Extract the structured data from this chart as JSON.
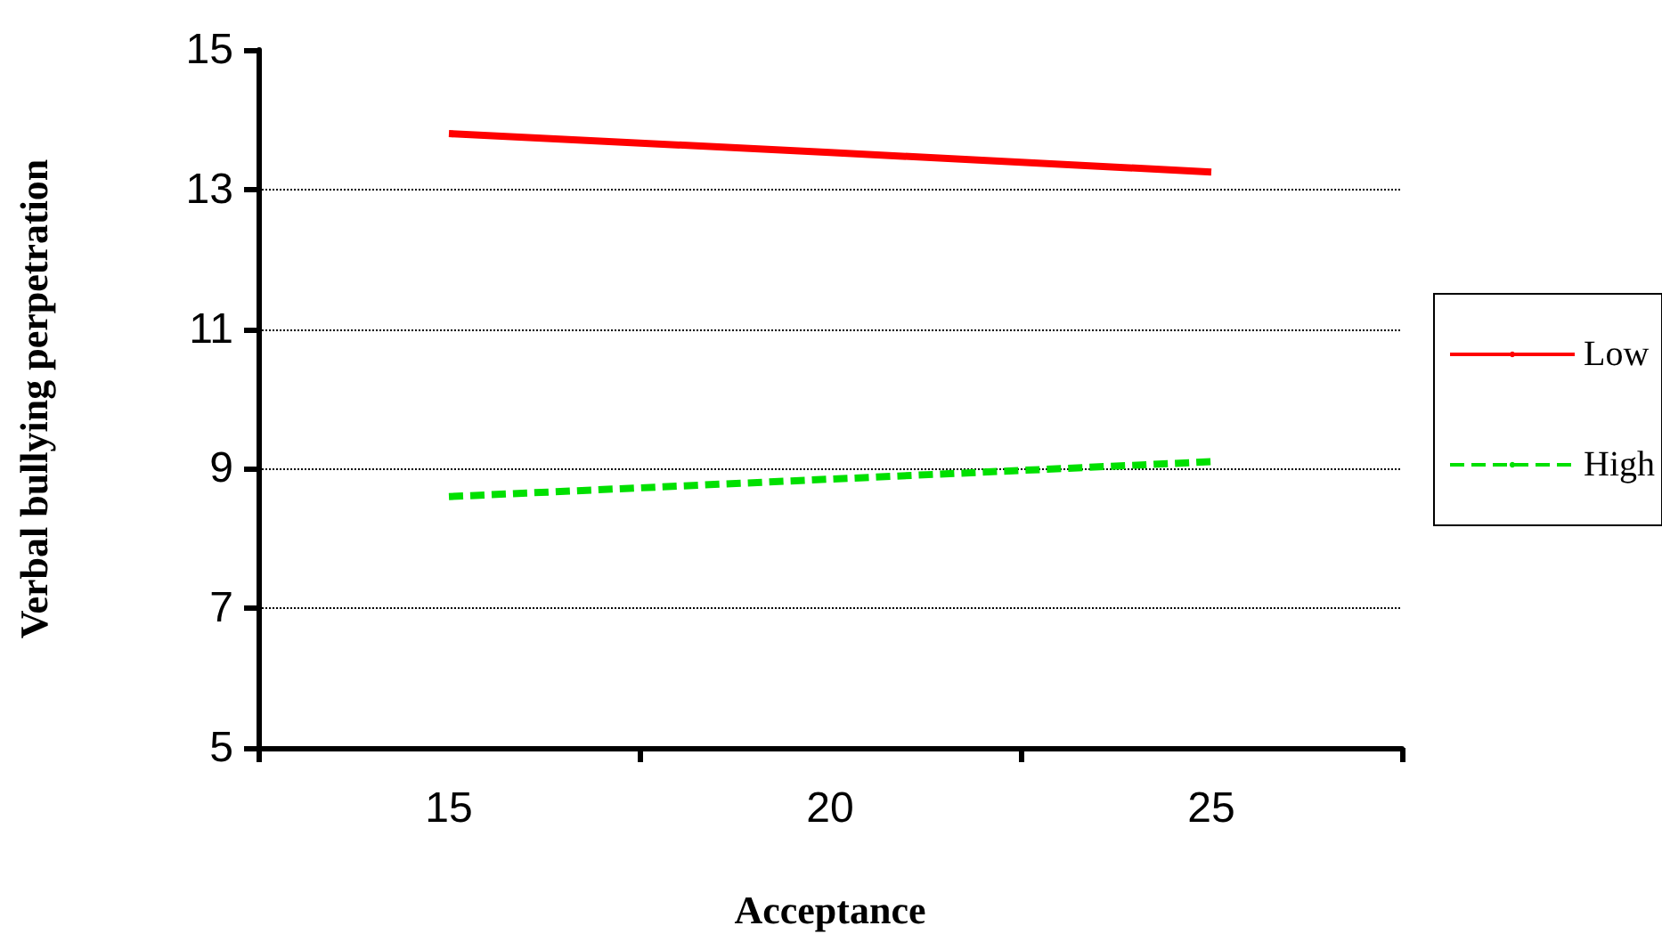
{
  "chart_data": {
    "type": "line",
    "xlabel": "Acceptance",
    "ylabel": "Verbal bullying perpetration",
    "categories": [
      "15",
      "20",
      "25"
    ],
    "series": [
      {
        "name": "Low",
        "color": "#ff0000",
        "values": [
          13.8,
          13.53,
          13.25
        ],
        "line_style": "solid"
      },
      {
        "name": "High",
        "color": "#00e000",
        "values": [
          8.6,
          8.85,
          9.1
        ],
        "line_style": "dashed"
      }
    ],
    "ylim": [
      5,
      15
    ],
    "yticks": [
      5,
      7,
      9,
      11,
      13,
      15
    ],
    "grid": "y",
    "legend": "right",
    "marker": "none"
  }
}
